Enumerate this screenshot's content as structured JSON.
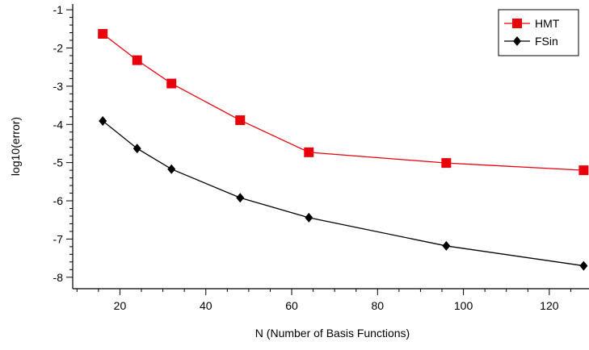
{
  "chart_data": {
    "type": "line",
    "title": "",
    "xlabel": "N (Number of Basis Functions)",
    "ylabel": "log10(error)",
    "xlim": [
      9,
      130
    ],
    "ylim": [
      -8.3,
      -0.85
    ],
    "xticks": [
      20,
      40,
      60,
      80,
      100,
      120
    ],
    "yticks": [
      -8,
      -7,
      -6,
      -5,
      -4,
      -3,
      -2,
      -1
    ],
    "grid": false,
    "legend_position": "top-right",
    "series": [
      {
        "name": "HMT",
        "color": "#e8000a",
        "marker": "square",
        "x": [
          16,
          24,
          32,
          48,
          64,
          96,
          128
        ],
        "y": [
          -1.63,
          -2.32,
          -2.93,
          -3.89,
          -4.73,
          -5.01,
          -5.2
        ]
      },
      {
        "name": "FSin",
        "color": "#000000",
        "marker": "diamond",
        "x": [
          16,
          24,
          32,
          48,
          64,
          96,
          128
        ],
        "y": [
          -3.91,
          -4.63,
          -5.17,
          -5.92,
          -6.44,
          -7.18,
          -7.7
        ]
      }
    ]
  }
}
